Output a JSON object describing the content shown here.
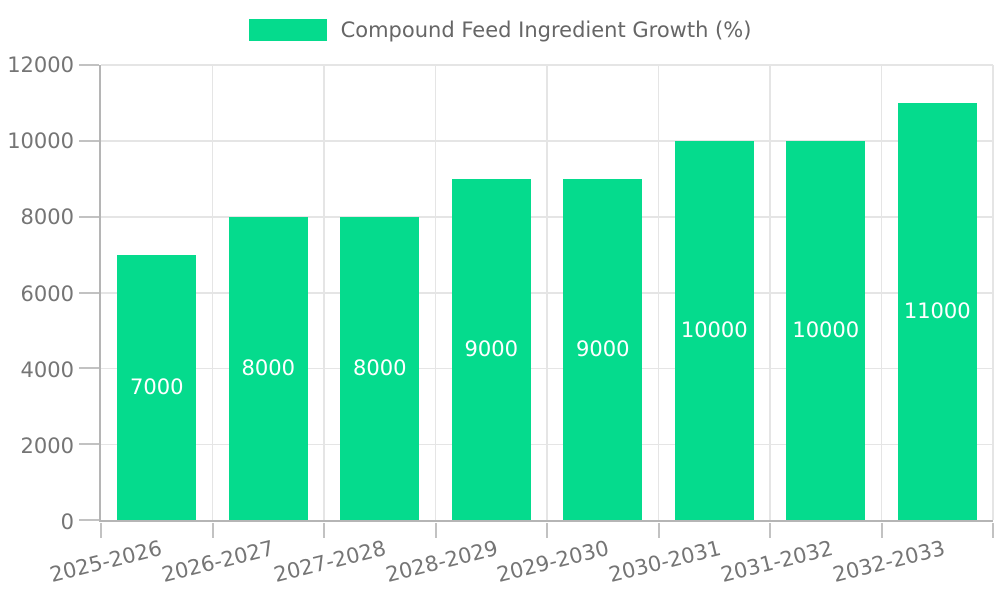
{
  "legend": {
    "label": "Compound Feed Ingredient Growth (%)"
  },
  "chart_data": {
    "type": "bar",
    "title": "Compound Feed Ingredient Growth (%)",
    "categories": [
      "2025-2026",
      "2026-2027",
      "2027-2028",
      "2028-2029",
      "2029-2030",
      "2030-2031",
      "2031-2032",
      "2032-2033"
    ],
    "values": [
      7000,
      8000,
      8000,
      9000,
      9000,
      10000,
      10000,
      11000
    ],
    "bar_value_labels": [
      "7000",
      "8000",
      "8000",
      "9000",
      "9000",
      "10000",
      "10000",
      "11000"
    ],
    "xlabel": "",
    "ylabel": "",
    "ylim": [
      0,
      12000
    ],
    "yticks": [
      0,
      2000,
      4000,
      6000,
      8000,
      10000,
      12000
    ],
    "ytick_labels": [
      "0",
      "2000",
      "4000",
      "6000",
      "8000",
      "10000",
      "12000"
    ],
    "grid": true,
    "legend_position": "top",
    "x_label_rotation_deg": -14,
    "style": {
      "bar_color": "#05DB8D",
      "gridline_color": "#E5E5E5",
      "axis_line_color": "#B5B5B5",
      "tick_mark_color": "#C2C2C2",
      "tick_label_color": "#757575",
      "legend_text_color": "#666666",
      "value_label_color": "#FFFFFF",
      "background_color": "#FFFFFF"
    }
  }
}
